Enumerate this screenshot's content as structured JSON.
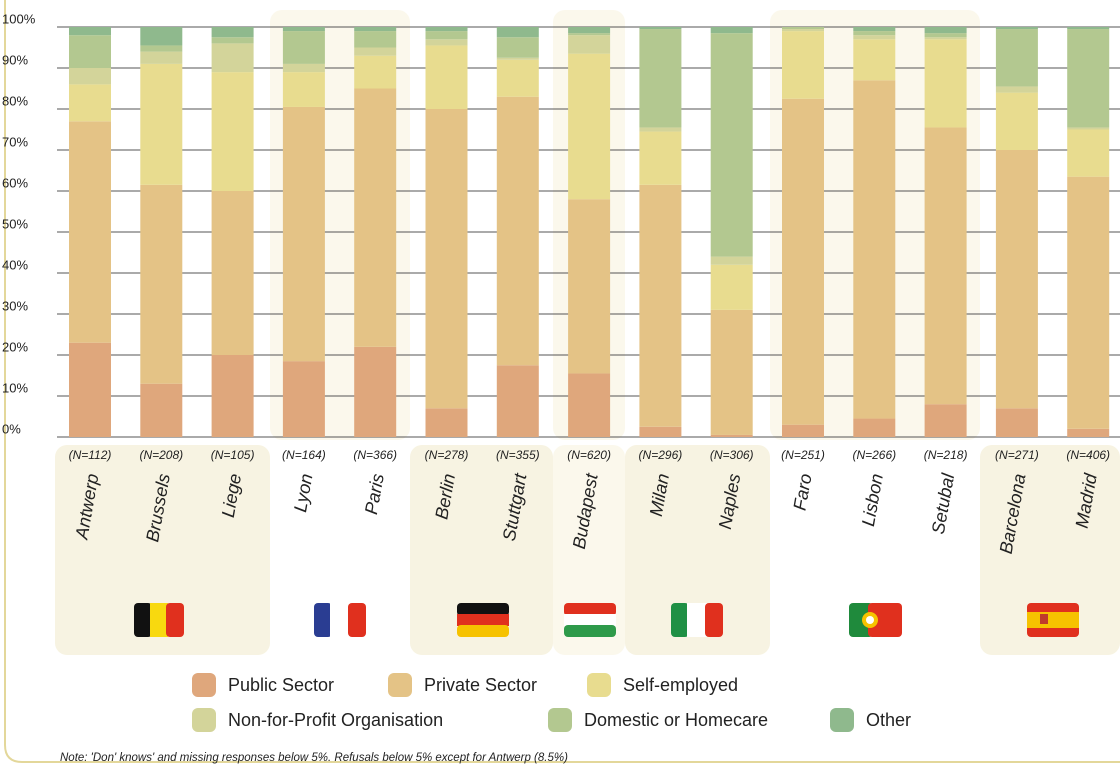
{
  "chart_data": {
    "type": "stacked_bar",
    "categories": [
      "Antwerp",
      "Brussels",
      "Liege",
      "Lyon",
      "Paris",
      "Berlin",
      "Stuttgart",
      "Budapest",
      "Milan",
      "Naples",
      "Faro",
      "Lisbon",
      "Setubal",
      "Barcelona",
      "Madrid"
    ],
    "sample_sizes": [
      "(N=112)",
      "(N=208)",
      "(N=105)",
      "(N=164)",
      "(N=366)",
      "(N=278)",
      "(N=355)",
      "(N=620)",
      "(N=296)",
      "(N=306)",
      "(N=251)",
      "(N=266)",
      "(N=218)",
      "(N=271)",
      "(N=406)"
    ],
    "series": [
      {
        "name": "Public Sector",
        "color": "#dfa77c",
        "values": [
          23,
          13,
          20,
          18.5,
          22,
          7,
          17.5,
          15.5,
          2.5,
          0.5,
          3,
          4.5,
          8,
          7,
          2
        ]
      },
      {
        "name": "Private Sector",
        "color": "#e4c386",
        "values": [
          54,
          48.5,
          40,
          62,
          63,
          73,
          65.5,
          42.5,
          59,
          30.5,
          79.5,
          82.5,
          67.5,
          63,
          61.5
        ]
      },
      {
        "name": "Self-employed",
        "color": "#e8dc8f",
        "values": [
          9,
          29.5,
          29,
          8.5,
          8,
          15.5,
          9,
          35.5,
          13,
          11,
          16.5,
          10,
          21.5,
          14,
          11.5
        ]
      },
      {
        "name": "Non-for-Profit Organisation",
        "color": "#d3d49a",
        "values": [
          4,
          3,
          7,
          2,
          2,
          1.5,
          0.5,
          4.5,
          1,
          2,
          0.5,
          1,
          0.5,
          1.5,
          0.5
        ]
      },
      {
        "name": "Domestic or Homecare",
        "color": "#b3c890",
        "values": [
          8,
          1.5,
          1.5,
          8,
          4,
          2,
          5,
          0.5,
          24,
          54.5,
          0.5,
          1,
          1,
          14,
          24
        ]
      },
      {
        "name": "Other",
        "color": "#8fb98d",
        "values": [
          2,
          4.5,
          2.5,
          1,
          1,
          1,
          2.5,
          1.5,
          0.5,
          1.5,
          0,
          1,
          1.5,
          0.5,
          0.5
        ]
      }
    ],
    "ylim": [
      0,
      100
    ],
    "yticks": [
      {
        "value": 0,
        "label": "0%"
      },
      {
        "value": 10,
        "label": "10%"
      },
      {
        "value": 20,
        "label": "20%"
      },
      {
        "value": 30,
        "label": "30%"
      },
      {
        "value": 40,
        "label": "40%"
      },
      {
        "value": 50,
        "label": "50%"
      },
      {
        "value": 60,
        "label": "60%"
      },
      {
        "value": 70,
        "label": "70%"
      },
      {
        "value": 80,
        "label": "80%"
      },
      {
        "value": 90,
        "label": "90%"
      },
      {
        "value": 100,
        "label": "100%"
      }
    ],
    "grid": true,
    "legend": "bottom",
    "note": "Note: 'Don' knows' and missing responses below 5%. Refusals below 5% except for Antwerp (8.5%)"
  }
}
